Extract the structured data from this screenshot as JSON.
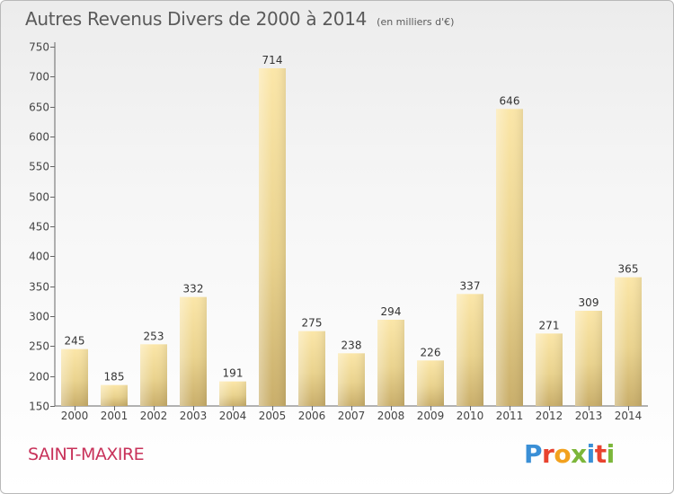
{
  "chart_data": {
    "type": "bar",
    "title": "Autres Revenus Divers de 2000 à 2014",
    "subtitle": "(en milliers d'€)",
    "categories": [
      "2000",
      "2001",
      "2002",
      "2003",
      "2004",
      "2005",
      "2006",
      "2007",
      "2008",
      "2009",
      "2010",
      "2011",
      "2012",
      "2013",
      "2014"
    ],
    "values": [
      245,
      185,
      253,
      332,
      191,
      714,
      275,
      238,
      294,
      226,
      337,
      646,
      271,
      309,
      365
    ],
    "ylim": [
      150,
      750
    ],
    "yticks": [
      150,
      200,
      250,
      300,
      350,
      400,
      450,
      500,
      550,
      600,
      650,
      700,
      750
    ],
    "grid": false,
    "bar_color": "#e6cf8c"
  },
  "footer": {
    "place_name": "SAINT-MAXIRE",
    "logo_text": "Proxiti"
  },
  "colors": {
    "place_name": "#c8325a",
    "text": "#5a5a5a"
  }
}
